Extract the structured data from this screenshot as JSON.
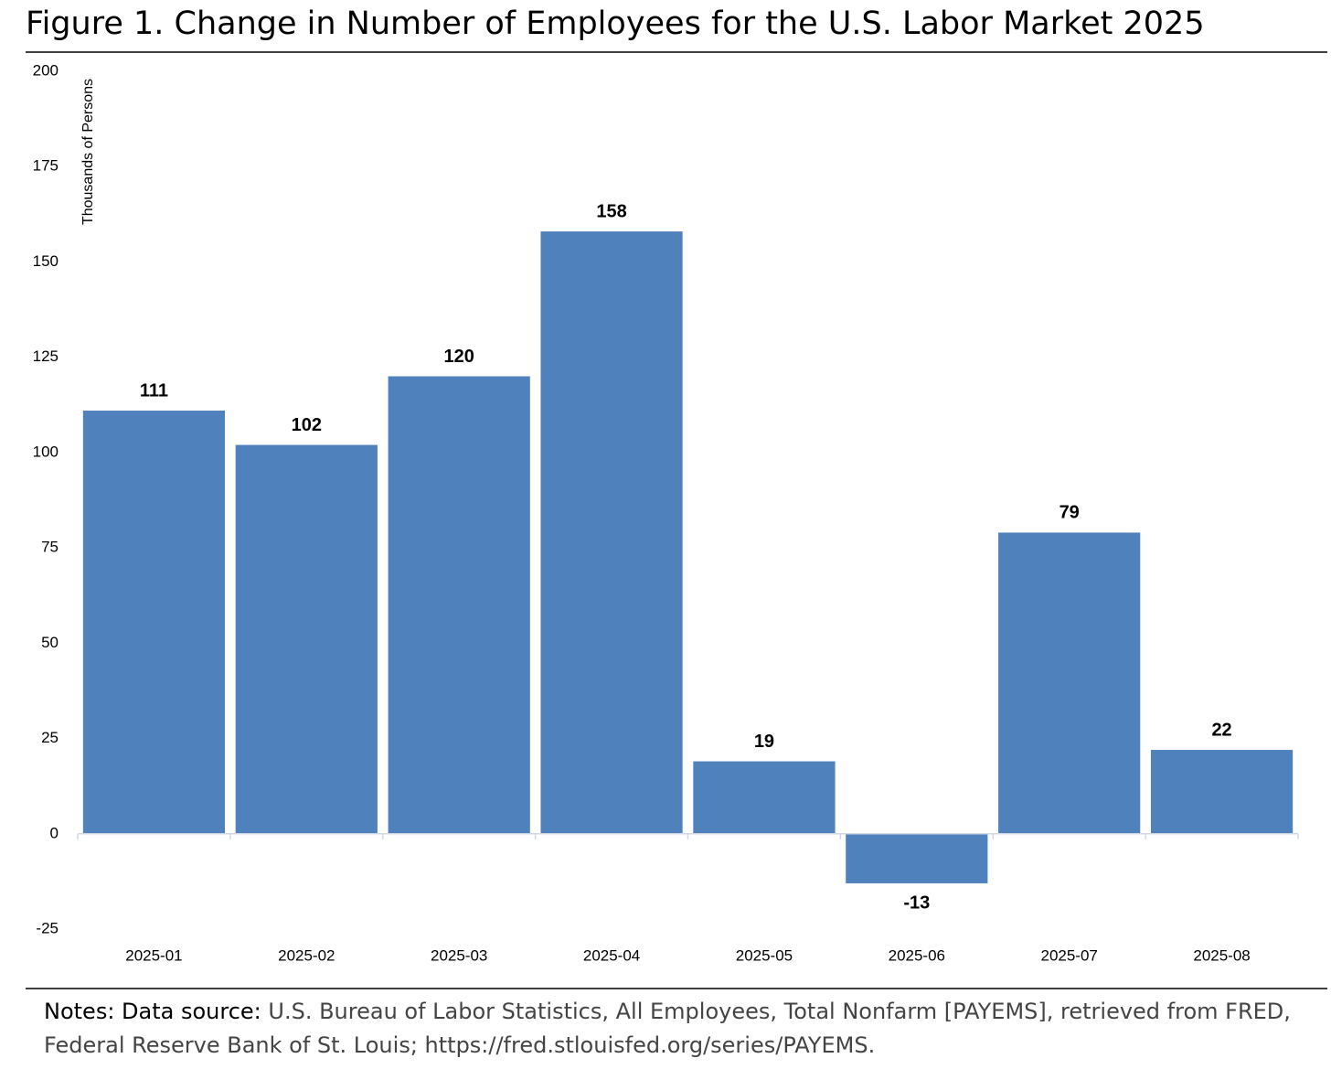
{
  "chart_data": {
    "type": "bar",
    "title": "Figure 1. Change in Number of Employees for the U.S. Labor Market 2025",
    "y_label": "Thousands of Persons",
    "categories": [
      "2025-01",
      "2025-02",
      "2025-03",
      "2025-04",
      "2025-05",
      "2025-06",
      "2025-07",
      "2025-08"
    ],
    "values": [
      111,
      102,
      120,
      158,
      19,
      -13,
      79,
      22
    ],
    "color": "#4f81bd",
    "ylim": [
      -25,
      200
    ],
    "yticks": [
      -25,
      0,
      25,
      50,
      75,
      100,
      125,
      150,
      175,
      200
    ],
    "grid": false,
    "notes_label": "Notes: Data source:",
    "notes_text": "U.S. Bureau of Labor Statistics, All Employees, Total Nonfarm [PAYEMS], retrieved from FRED, Federal Reserve Bank of St. Louis; https://fred.stlouisfed.org/series/PAYEMS."
  }
}
